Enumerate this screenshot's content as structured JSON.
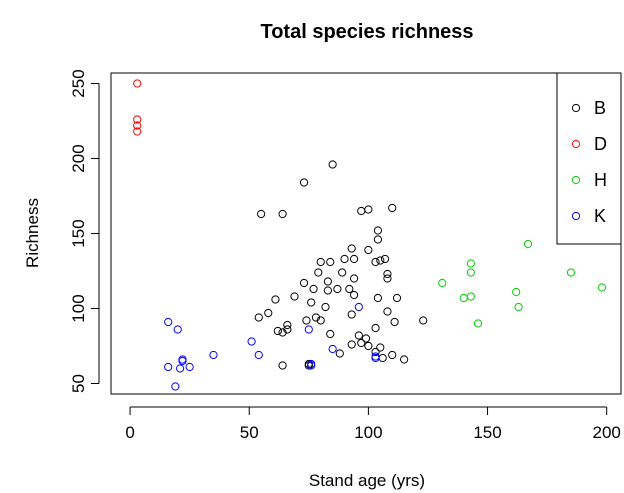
{
  "chart_data": {
    "type": "scatter",
    "title": "Total species richness",
    "xlabel": "Stand age (yrs)",
    "ylabel": "Richness",
    "xlim": [
      -8,
      206
    ],
    "ylim": [
      43,
      257
    ],
    "xticks": [
      0,
      50,
      100,
      150,
      200
    ],
    "yticks": [
      50,
      100,
      150,
      200,
      250
    ],
    "grid": false,
    "legend_position": "top-right",
    "series": [
      {
        "name": "B",
        "color": "#000000",
        "points": [
          [
            55,
            163
          ],
          [
            64,
            163
          ],
          [
            73,
            184
          ],
          [
            85,
            196
          ],
          [
            97,
            165
          ],
          [
            100,
            166
          ],
          [
            110,
            167
          ],
          [
            104,
            152
          ],
          [
            104,
            146
          ],
          [
            100,
            139
          ],
          [
            93,
            140
          ],
          [
            90,
            133
          ],
          [
            94,
            133
          ],
          [
            107,
            133
          ],
          [
            103,
            131
          ],
          [
            105,
            132
          ],
          [
            80,
            131
          ],
          [
            84,
            131
          ],
          [
            79,
            124
          ],
          [
            89,
            124
          ],
          [
            108,
            123
          ],
          [
            108,
            120
          ],
          [
            94,
            120
          ],
          [
            83,
            118
          ],
          [
            87,
            113
          ],
          [
            73,
            117
          ],
          [
            77,
            113
          ],
          [
            92,
            113
          ],
          [
            83,
            112
          ],
          [
            61,
            106
          ],
          [
            69,
            108
          ],
          [
            104,
            107
          ],
          [
            112,
            107
          ],
          [
            82,
            101
          ],
          [
            76,
            104
          ],
          [
            94,
            109
          ],
          [
            54,
            94
          ],
          [
            58,
            97
          ],
          [
            66,
            89
          ],
          [
            78,
            94
          ],
          [
            93,
            96
          ],
          [
            108,
            98
          ],
          [
            74,
            92
          ],
          [
            80,
            92
          ],
          [
            62,
            85
          ],
          [
            64,
            84
          ],
          [
            66,
            86
          ],
          [
            84,
            83
          ],
          [
            96,
            82
          ],
          [
            99,
            80
          ],
          [
            103,
            87
          ],
          [
            93,
            76
          ],
          [
            97,
            77
          ],
          [
            100,
            75
          ],
          [
            105,
            74
          ],
          [
            111,
            91
          ],
          [
            123,
            92
          ],
          [
            88,
            70
          ],
          [
            103,
            71
          ],
          [
            106,
            67
          ],
          [
            110,
            69
          ],
          [
            115,
            66
          ],
          [
            64,
            62
          ],
          [
            75,
            62
          ],
          [
            75,
            63
          ]
        ]
      },
      {
        "name": "D",
        "color": "#ff0000",
        "points": [
          [
            3,
            250
          ],
          [
            3,
            226
          ],
          [
            3,
            222
          ],
          [
            3,
            218
          ]
        ]
      },
      {
        "name": "H",
        "color": "#00cd00",
        "points": [
          [
            131,
            117
          ],
          [
            140,
            107
          ],
          [
            143,
            108
          ],
          [
            143,
            130
          ],
          [
            143,
            124
          ],
          [
            146,
            90
          ],
          [
            162,
            111
          ],
          [
            163,
            101
          ],
          [
            167,
            143
          ],
          [
            185,
            124
          ],
          [
            198,
            114
          ]
        ]
      },
      {
        "name": "K",
        "color": "#0000ff",
        "points": [
          [
            16,
            91
          ],
          [
            20,
            86
          ],
          [
            16,
            61
          ],
          [
            19,
            48
          ],
          [
            21,
            60
          ],
          [
            22,
            66
          ],
          [
            22,
            65
          ],
          [
            25,
            61
          ],
          [
            35,
            69
          ],
          [
            51,
            78
          ],
          [
            54,
            69
          ],
          [
            75,
            86
          ],
          [
            76,
            62
          ],
          [
            76,
            63
          ],
          [
            85,
            73
          ],
          [
            96,
            101
          ],
          [
            103,
            68
          ],
          [
            103,
            67
          ]
        ]
      }
    ]
  }
}
